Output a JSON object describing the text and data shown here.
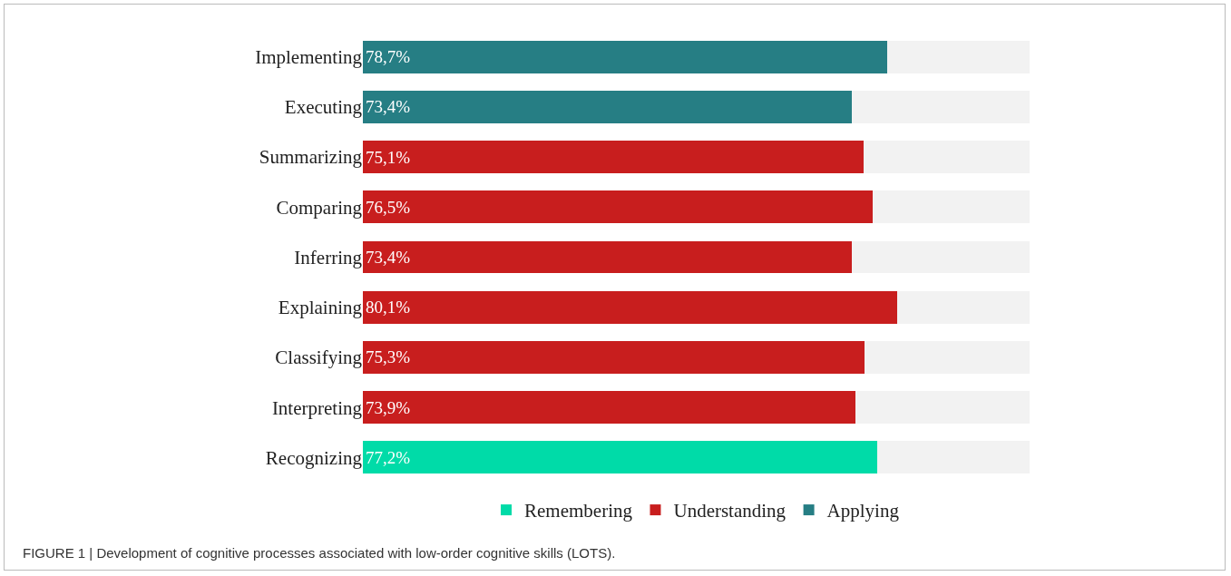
{
  "chart_data": {
    "type": "bar",
    "orientation": "horizontal",
    "stacked": true,
    "categories": [
      "Implementing",
      "Executing",
      "Summarizing",
      "Comparing",
      "Inferring",
      "Explaining",
      "Classifying",
      "Interpreting",
      "Recognizing"
    ],
    "series": [
      {
        "name": "Remembering",
        "color": "#00dba8",
        "values": [
          null,
          null,
          null,
          null,
          null,
          null,
          null,
          null,
          77.2
        ],
        "value_labels": [
          null,
          null,
          null,
          null,
          null,
          null,
          null,
          null,
          "77,2%"
        ]
      },
      {
        "name": "Understanding",
        "color": "#c81e1e",
        "values": [
          null,
          null,
          75.1,
          76.5,
          73.4,
          80.1,
          75.3,
          73.9,
          null
        ],
        "value_labels": [
          null,
          null,
          "75,1%",
          "76,5%",
          "73,4%",
          "80,1%",
          "75,3%",
          "73,9%",
          null
        ]
      },
      {
        "name": "Applying",
        "color": "#267e84",
        "values": [
          78.7,
          73.4,
          null,
          null,
          null,
          null,
          null,
          null,
          null
        ],
        "value_labels": [
          "78,7%",
          "73,4%",
          null,
          null,
          null,
          null,
          null,
          null,
          null
        ]
      },
      {
        "color": "#f2f2f2",
        "values": [
          21.3,
          26.6,
          24.9,
          23.5,
          26.6,
          19.9,
          24.7,
          26.1,
          22.8
        ]
      }
    ],
    "xlim": [
      0,
      100
    ],
    "tick_labels": "y",
    "legend": "bottom",
    "annotations": [
      "FIGURE 1 | Development of cognitive processes associated with low-order cognitive skills (LOTS)."
    ]
  }
}
